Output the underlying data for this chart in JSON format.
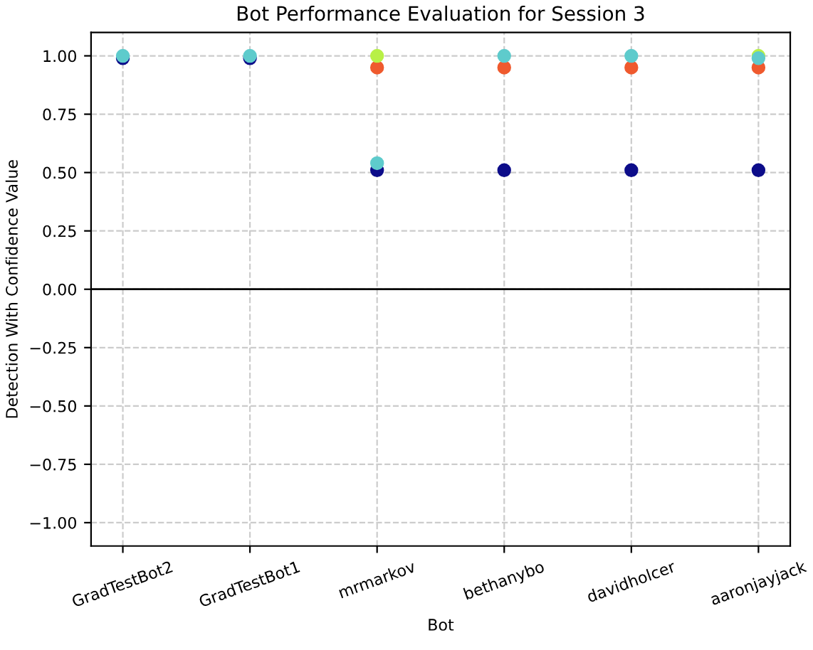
{
  "chart_data": {
    "type": "scatter",
    "title": "Bot Performance Evaluation for Session 3",
    "xlabel": "Bot",
    "ylabel": "Detection With Confidence Value",
    "categories": [
      "GradTestBot2",
      "GradTestBot1",
      "mrmarkov",
      "bethanybo",
      "davidholcer",
      "aaronjayjack"
    ],
    "series": [
      {
        "color": "#0d0d8a",
        "values": [
          0.99,
          0.99,
          0.51,
          0.51,
          0.51,
          0.51
        ]
      },
      {
        "color": "#ef5a2e",
        "values": [
          null,
          null,
          0.95,
          0.95,
          0.95,
          0.95
        ]
      },
      {
        "color": "#b8f046",
        "values": [
          null,
          null,
          1.0,
          null,
          null,
          1.0
        ]
      },
      {
        "color": "#5ecbcc",
        "values": [
          1.0,
          1.0,
          0.54,
          1.0,
          1.0,
          0.99
        ]
      }
    ],
    "ylim": [
      -1.1,
      1.1
    ],
    "yticks": [
      {
        "value": -1,
        "label": "−1.00"
      },
      {
        "value": -0.75,
        "label": "−0.75"
      },
      {
        "value": -0.5,
        "label": "−0.50"
      },
      {
        "value": -0.25,
        "label": "−0.25"
      },
      {
        "value": 0,
        "label": "0.00"
      },
      {
        "value": 0.25,
        "label": "0.25"
      },
      {
        "value": 0.5,
        "label": "0.50"
      },
      {
        "value": 0.75,
        "label": "0.75"
      },
      {
        "value": 1,
        "label": "1.00"
      }
    ],
    "ref_lines": [
      {
        "axis": "y",
        "value": 0,
        "color": "#000000"
      }
    ],
    "grid": true,
    "marker": "circle"
  }
}
